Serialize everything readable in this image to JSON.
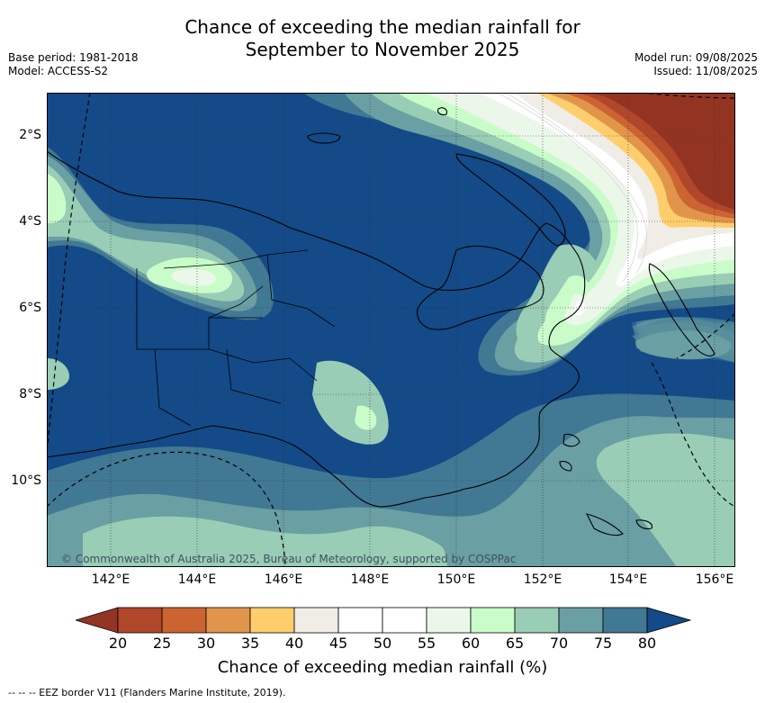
{
  "title_line1": "Chance of exceeding the median rainfall for",
  "title_line2": "September to November 2025",
  "base_period": "Base period: 1981-2018",
  "model": "Model: ACCESS-S2",
  "model_run": "Model run: 09/08/2025",
  "issued": "Issued: 11/08/2025",
  "lat_labels": [
    "2°S",
    "4°S",
    "6°S",
    "8°S",
    "10°S"
  ],
  "lon_labels": [
    "142°E",
    "144°E",
    "146°E",
    "148°E",
    "150°E",
    "152°E",
    "154°E",
    "156°E"
  ],
  "copyright": "© Commonwealth of Australia 2025, Bureau of Meteorology, supported by COSPPac",
  "colorbar": {
    "ticks": [
      "20",
      "25",
      "30",
      "35",
      "40",
      "45",
      "50",
      "55",
      "60",
      "65",
      "70",
      "75",
      "80"
    ],
    "colors": [
      "#b1472a",
      "#cb6431",
      "#e0954b",
      "#fece6d",
      "#f0ece6",
      "#ffffff",
      "#ffffff",
      "#ebf7e8",
      "#cafcca",
      "#99cdb5",
      "#6a9fa3",
      "#417893"
    ],
    "low_color": "#933422",
    "high_color": "#134a87",
    "label": "Chance of exceeding median rainfall (%)"
  },
  "footnote": "--  --  -- EEZ border V11 (Flanders Marine Institute, 2019)."
}
